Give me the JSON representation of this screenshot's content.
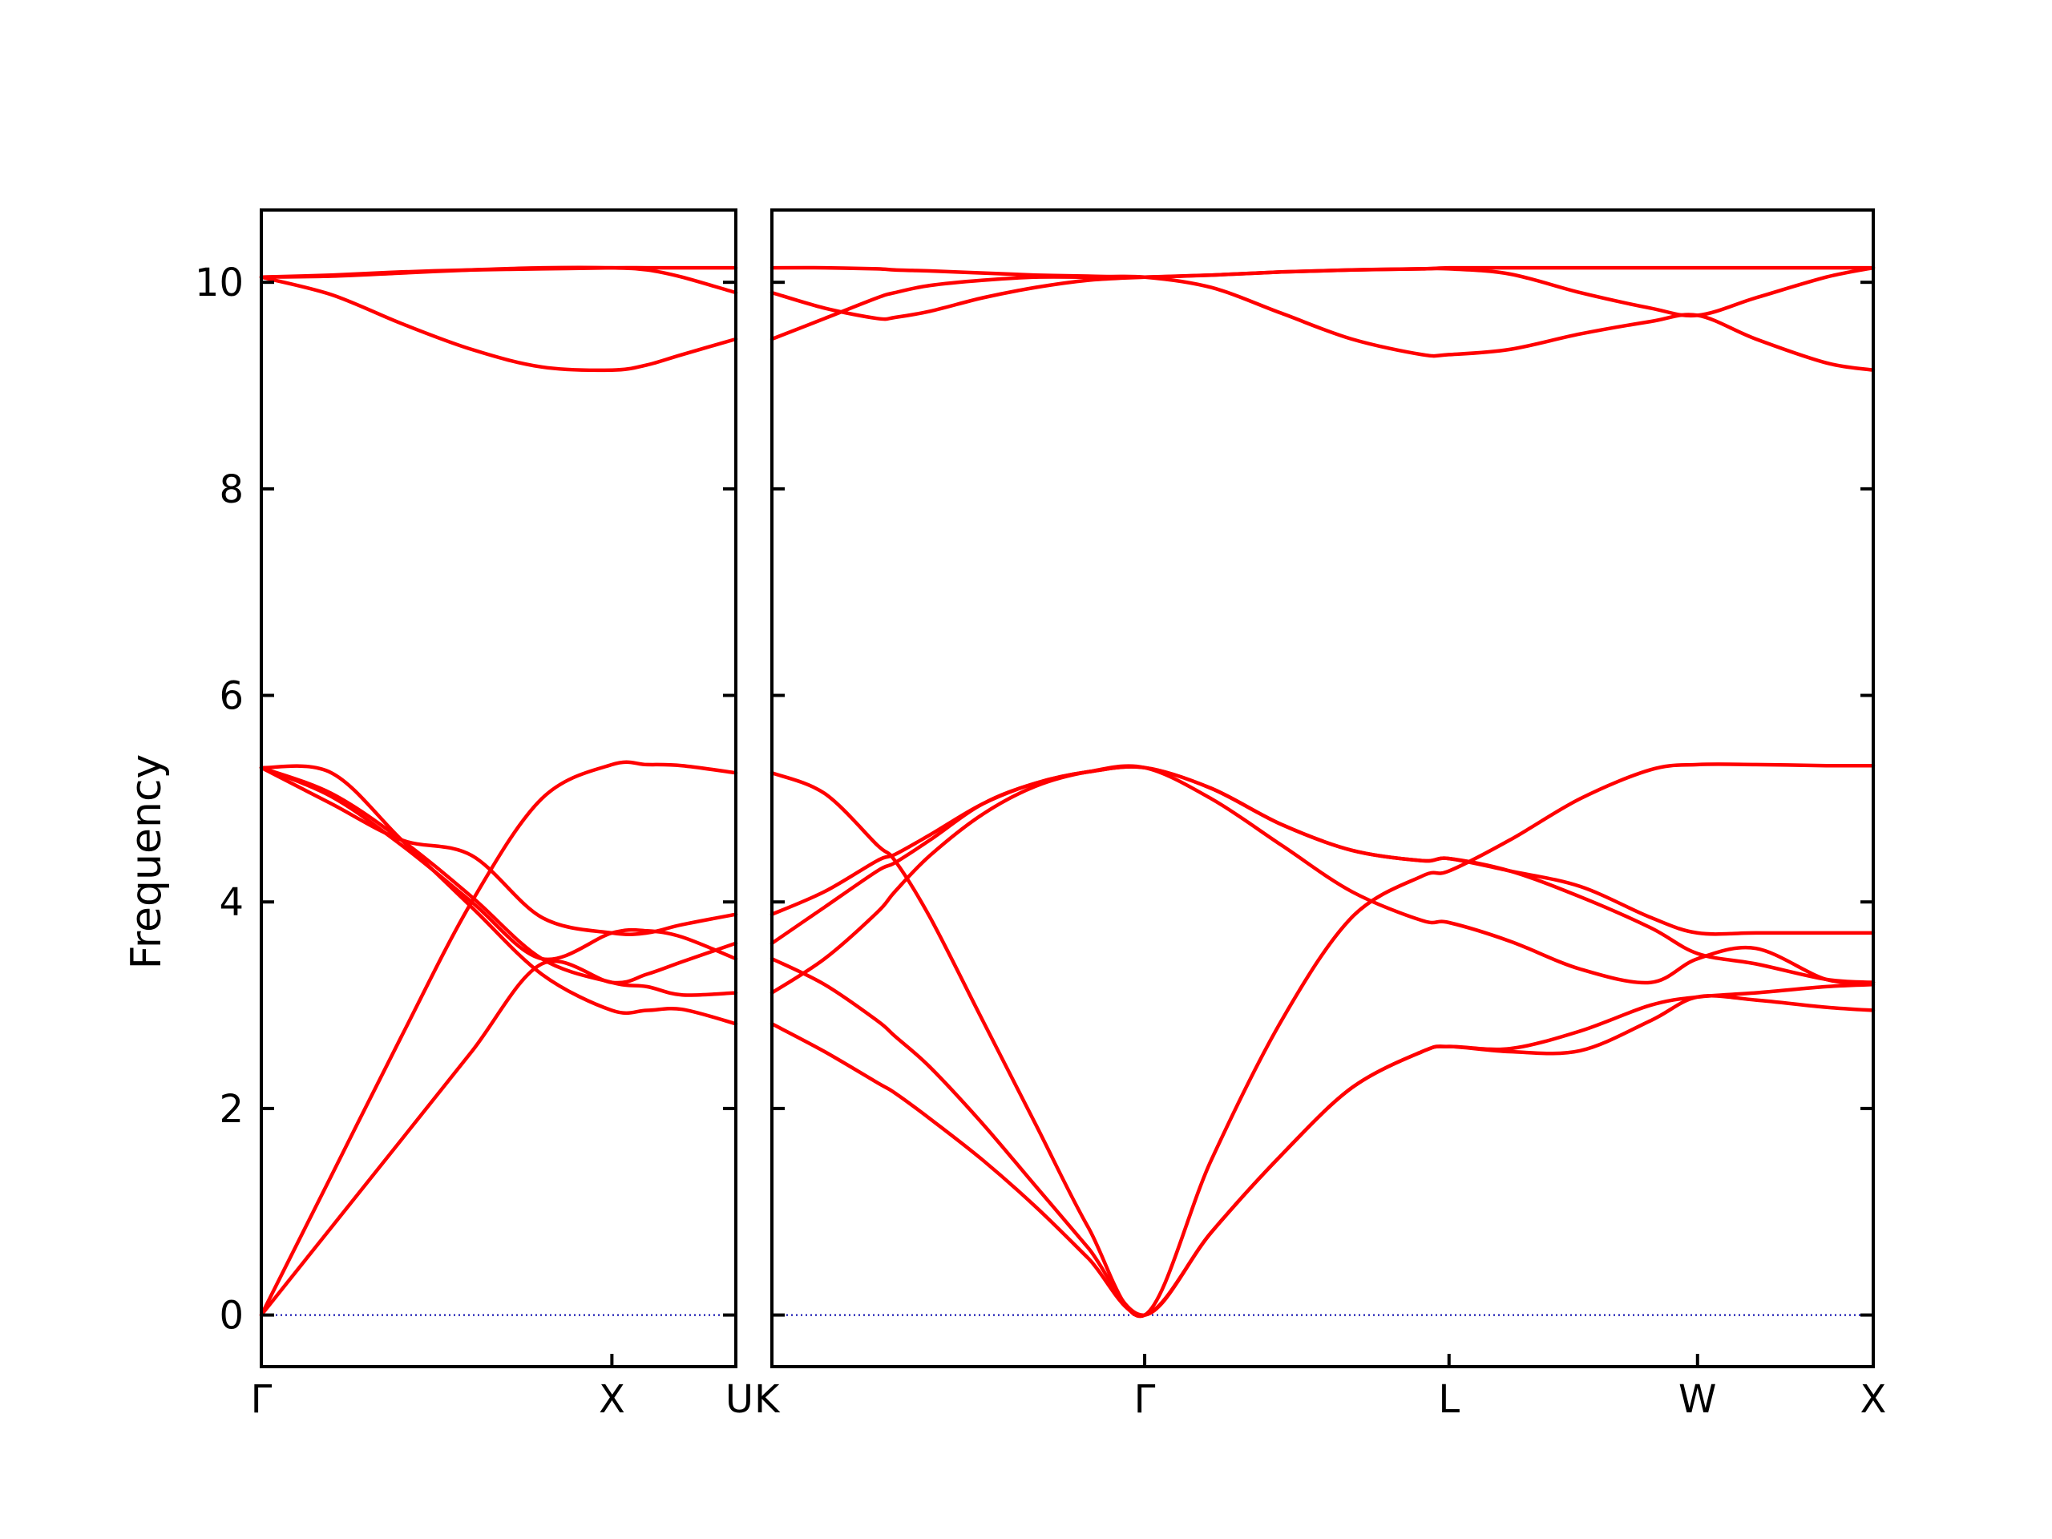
{
  "chart_data": {
    "type": "line",
    "ylabel": "Frequency",
    "ylim": [
      -0.5,
      10.7
    ],
    "yticks": [
      0,
      2,
      4,
      6,
      8,
      10
    ],
    "grid": false,
    "line_color": "#ff0000",
    "zero_line_color": "#0000aa",
    "panels": [
      {
        "name": "left",
        "xticks": [
          {
            "x": 0,
            "label": "Γ"
          },
          {
            "x": 1,
            "label": "X"
          },
          {
            "x": 1.3535,
            "label": "U"
          }
        ],
        "series": [
          {
            "x": [
              0,
              0.2,
              0.4,
              0.6,
              0.8,
              1.0,
              1.1,
              1.2,
              1.3535
            ],
            "values": [
              0,
              1.35,
              2.7,
              4.0,
              5.0,
              5.33,
              5.33,
              5.32,
              5.25
            ]
          },
          {
            "x": [
              0,
              0.2,
              0.4,
              0.6,
              0.8,
              1.0,
              1.1,
              1.2,
              1.3535
            ],
            "values": [
              0,
              0.85,
              1.7,
              2.55,
              3.4,
              3.22,
              3.3,
              3.42,
              3.6
            ]
          },
          {
            "x": [
              0,
              0.2,
              0.4,
              0.6,
              0.8,
              1.0,
              1.1,
              1.2,
              1.3535
            ],
            "values": [
              5.3,
              5.25,
              4.6,
              3.95,
              3.3,
              2.95,
              2.95,
              2.96,
              2.82
            ]
          },
          {
            "x": [
              0,
              0.2,
              0.4,
              0.6,
              0.8,
              1.0,
              1.1,
              1.2,
              1.3535
            ],
            "values": [
              5.3,
              5.05,
              4.6,
              4.05,
              3.45,
              3.22,
              3.18,
              3.1,
              3.12
            ]
          },
          {
            "x": [
              0,
              0.2,
              0.4,
              0.6,
              0.8,
              1.0,
              1.1,
              1.2,
              1.3535
            ],
            "values": [
              5.3,
              5.02,
              4.55,
              4.0,
              3.45,
              3.7,
              3.72,
              3.66,
              3.45
            ]
          },
          {
            "x": [
              0,
              0.2,
              0.4,
              0.6,
              0.8,
              1.0,
              1.1,
              1.2,
              1.3535
            ],
            "values": [
              5.3,
              4.95,
              4.6,
              4.45,
              3.85,
              3.7,
              3.7,
              3.78,
              3.88
            ]
          },
          {
            "x": [
              0,
              0.2,
              0.4,
              0.6,
              0.8,
              1.0,
              1.1,
              1.2,
              1.3535
            ],
            "values": [
              10.05,
              9.88,
              9.6,
              9.35,
              9.18,
              9.15,
              9.2,
              9.3,
              9.45
            ]
          },
          {
            "x": [
              0,
              0.2,
              0.4,
              0.6,
              0.8,
              1.0,
              1.1,
              1.2,
              1.3535
            ],
            "values": [
              10.05,
              10.06,
              10.09,
              10.12,
              10.14,
              10.14,
              10.12,
              10.05,
              9.9
            ]
          },
          {
            "x": [
              0,
              0.2,
              0.4,
              0.6,
              0.8,
              1.0,
              1.1,
              1.2,
              1.3535
            ],
            "values": [
              10.05,
              10.07,
              10.1,
              10.12,
              10.13,
              10.14,
              10.14,
              10.14,
              10.14
            ]
          }
        ]
      },
      {
        "name": "right",
        "xticks": [
          {
            "x": 0,
            "label": "K"
          },
          {
            "x": 1.0607,
            "label": "Γ"
          },
          {
            "x": 1.9267,
            "label": "L"
          },
          {
            "x": 2.6338,
            "label": "W"
          },
          {
            "x": 3.1338,
            "label": "X"
          }
        ],
        "series": [
          {
            "x": [
              0,
              0.15,
              0.3,
              0.35,
              0.45,
              0.6,
              0.75,
              0.9,
              1.0607,
              1.25,
              1.45,
              1.65,
              1.85,
              1.9267,
              2.1,
              2.3,
              2.5,
              2.6338,
              2.8,
              3.0,
              3.1338
            ],
            "values": [
              5.25,
              5.05,
              4.55,
              4.4,
              3.85,
              2.85,
              1.85,
              0.85,
              0,
              1.5,
              2.85,
              3.85,
              4.25,
              4.3,
              4.6,
              5.0,
              5.28,
              5.33,
              5.33,
              5.32,
              5.32
            ]
          },
          {
            "x": [
              0,
              0.15,
              0.3,
              0.35,
              0.45,
              0.6,
              0.75,
              0.9,
              1.0607,
              1.25,
              1.45,
              1.65,
              1.85,
              1.9267,
              2.1,
              2.3,
              2.5,
              2.6338,
              2.8,
              3.0,
              3.1338
            ],
            "values": [
              3.45,
              3.2,
              2.85,
              2.7,
              2.4,
              1.85,
              1.25,
              0.65,
              0,
              0.8,
              1.55,
              2.2,
              2.55,
              2.6,
              2.58,
              2.75,
              3.0,
              3.08,
              3.12,
              3.18,
              3.2
            ]
          },
          {
            "x": [
              0,
              0.15,
              0.3,
              0.35,
              0.45,
              0.6,
              0.75,
              0.9,
              1.0607,
              1.25,
              1.45,
              1.65,
              1.85,
              1.9267,
              2.1,
              2.3,
              2.5,
              2.6338,
              2.8,
              3.0,
              3.1338
            ],
            "values": [
              2.82,
              2.55,
              2.25,
              2.15,
              1.9,
              1.5,
              1.05,
              0.55,
              0,
              0.8,
              1.55,
              2.2,
              2.55,
              2.6,
              2.55,
              2.56,
              2.85,
              3.08,
              3.05,
              2.98,
              2.95
            ]
          },
          {
            "x": [
              0,
              0.15,
              0.3,
              0.35,
              0.45,
              0.6,
              0.75,
              0.9,
              1.0607,
              1.25,
              1.45,
              1.65,
              1.85,
              1.9267,
              2.1,
              2.3,
              2.5,
              2.6338,
              2.8,
              3.0,
              3.1338
            ],
            "values": [
              3.12,
              3.45,
              3.9,
              4.1,
              4.45,
              4.85,
              5.12,
              5.26,
              5.3,
              5.0,
              4.55,
              4.1,
              3.82,
              3.8,
              3.62,
              3.35,
              3.22,
              3.45,
              3.55,
              3.25,
              3.22
            ]
          },
          {
            "x": [
              0,
              0.15,
              0.3,
              0.35,
              0.45,
              0.6,
              0.75,
              0.9,
              1.0607,
              1.25,
              1.45,
              1.65,
              1.85,
              1.9267,
              2.1,
              2.3,
              2.5,
              2.6338,
              2.8,
              3.0,
              3.1338
            ],
            "values": [
              3.6,
              3.95,
              4.3,
              4.38,
              4.6,
              4.95,
              5.15,
              5.26,
              5.3,
              5.1,
              4.75,
              4.5,
              4.4,
              4.42,
              4.3,
              4.05,
              3.75,
              3.5,
              3.4,
              3.25,
              3.22
            ]
          },
          {
            "x": [
              0,
              0.15,
              0.3,
              0.35,
              0.45,
              0.6,
              0.75,
              0.9,
              1.0607,
              1.25,
              1.45,
              1.65,
              1.85,
              1.9267,
              2.1,
              2.3,
              2.5,
              2.6338,
              2.8,
              3.0,
              3.1338
            ],
            "values": [
              3.88,
              4.1,
              4.4,
              4.46,
              4.65,
              4.95,
              5.15,
              5.26,
              5.3,
              5.1,
              4.75,
              4.5,
              4.4,
              4.42,
              4.3,
              4.15,
              3.85,
              3.7,
              3.7,
              3.7,
              3.7
            ]
          },
          {
            "x": [
              0,
              0.15,
              0.3,
              0.35,
              0.45,
              0.6,
              0.75,
              0.9,
              1.0607,
              1.25,
              1.45,
              1.65,
              1.85,
              1.9267,
              2.1,
              2.3,
              2.5,
              2.6338,
              2.8,
              3.0,
              3.1338
            ],
            "values": [
              9.45,
              9.65,
              9.85,
              9.9,
              9.97,
              10.02,
              10.05,
              10.05,
              10.05,
              9.95,
              9.7,
              9.45,
              9.3,
              9.3,
              9.35,
              9.5,
              9.62,
              9.68,
              9.45,
              9.22,
              9.15
            ]
          },
          {
            "x": [
              0,
              0.15,
              0.3,
              0.35,
              0.45,
              0.6,
              0.75,
              0.9,
              1.0607,
              1.25,
              1.45,
              1.65,
              1.85,
              1.9267,
              2.1,
              2.3,
              2.5,
              2.6338,
              2.8,
              3.0,
              3.1338
            ],
            "values": [
              9.9,
              9.75,
              9.65,
              9.66,
              9.72,
              9.85,
              9.95,
              10.02,
              10.05,
              10.07,
              10.1,
              10.12,
              10.13,
              10.13,
              10.08,
              9.9,
              9.75,
              9.68,
              9.85,
              10.05,
              10.14
            ]
          },
          {
            "x": [
              0,
              0.15,
              0.3,
              0.35,
              0.45,
              0.6,
              0.75,
              0.9,
              1.0607,
              1.25,
              1.45,
              1.65,
              1.85,
              1.9267,
              2.1,
              2.3,
              2.5,
              2.6338,
              2.8,
              3.0,
              3.1338
            ],
            "values": [
              10.14,
              10.14,
              10.13,
              10.12,
              10.11,
              10.09,
              10.07,
              10.06,
              10.05,
              10.07,
              10.1,
              10.12,
              10.13,
              10.14,
              10.14,
              10.14,
              10.14,
              10.14,
              10.14,
              10.14,
              10.14
            ]
          }
        ]
      }
    ]
  }
}
